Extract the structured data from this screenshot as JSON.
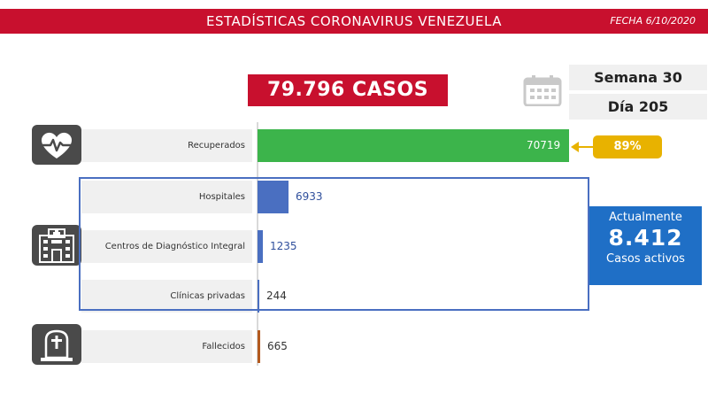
{
  "header": {
    "title": "ESTADÍSTICAS CORONAVIRUS VENEZUELA",
    "date": "FECHA 6/10/2020",
    "total_cases": "79.796 CASOS",
    "week": "Semana 30",
    "day": "Día 205"
  },
  "active": {
    "label": "Actualmente",
    "value": "8.412",
    "sub": "Casos activos"
  },
  "recovered_pct": "89%",
  "icons": {
    "recovered": "heart-pulse-icon",
    "hospital": "hospital-icon",
    "deaths": "tombstone-icon",
    "calendar": "calendar-icon"
  },
  "colors": {
    "brand_red": "#c8102e",
    "recovered": "#3cb44b",
    "hospital": "#4a6fc1",
    "deaths": "#b35a1f",
    "highlight": "#e8b200",
    "active_box": "#1f6fc6"
  },
  "chart_data": {
    "type": "bar",
    "orientation": "horizontal",
    "categories": [
      "Recuperados",
      "Hospitales",
      "Centros de Diagnóstico Integral",
      "Clínicas privadas",
      "Fallecidos"
    ],
    "values": [
      70719,
      6933,
      1235,
      244,
      665
    ],
    "value_labels": [
      "70719",
      "6933",
      "1235",
      "244",
      "665"
    ],
    "bar_colors": [
      "#3cb44b",
      "#4a6fc1",
      "#4a6fc1",
      "#4a6fc1",
      "#b35a1f"
    ],
    "xlim": [
      0,
      70719
    ]
  }
}
